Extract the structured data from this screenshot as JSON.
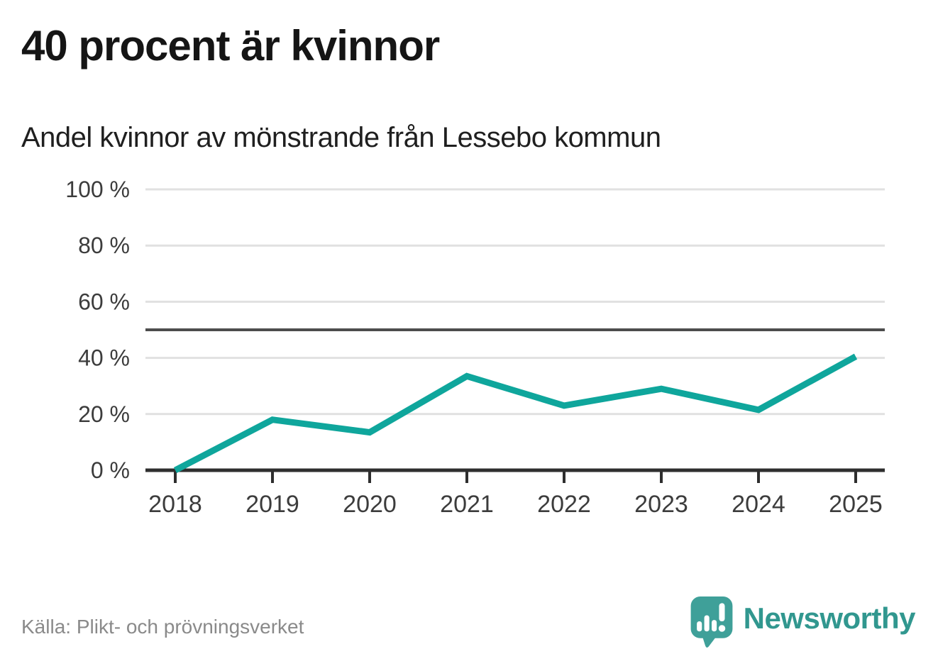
{
  "header": {
    "title": "40 procent är kvinnor",
    "subtitle": "Andel kvinnor av mönstrande från Lessebo kommun"
  },
  "chart_data": {
    "type": "line",
    "title": "40 procent är kvinnor",
    "subtitle": "Andel kvinnor av mönstrande från Lessebo kommun",
    "x": [
      2018,
      2019,
      2020,
      2021,
      2022,
      2023,
      2024,
      2025
    ],
    "series": [
      {
        "name": "Andel kvinnor av mönstrande",
        "values": [
          0,
          18,
          13.5,
          33.5,
          23,
          29,
          21.5,
          40.5
        ]
      }
    ],
    "xlabel": "",
    "ylabel": "",
    "ylim": [
      0,
      100
    ],
    "yticks": [
      0,
      20,
      40,
      60,
      80,
      100
    ],
    "ytick_suffix": " %",
    "grid": true,
    "legend": false,
    "reference_line": {
      "value": 50
    }
  },
  "footer": {
    "source": "Källa: Plikt- och prövningsverket",
    "brand": "Newsworthy"
  },
  "colors": {
    "line": "#0fa69c",
    "reference_line": "#4d4d4d",
    "gridline": "#e1e1e1",
    "axis": "#2e2e2e",
    "axis_label": "#3c3c3c",
    "brand_icon": "#3fa099",
    "brand_text": "#31978f"
  }
}
